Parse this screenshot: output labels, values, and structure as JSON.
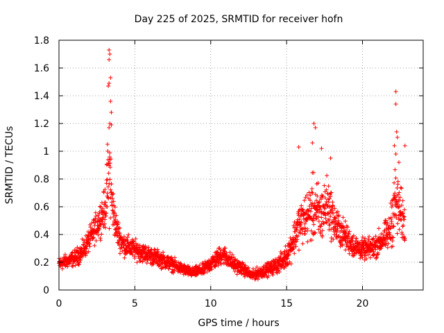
{
  "chart_data": {
    "type": "scatter",
    "title": "Day 225 of 2025, SRMTID for receiver hofn",
    "xlabel": "GPS time / hours",
    "ylabel": "SRMTID / TECUs",
    "xlim": [
      0,
      24
    ],
    "ylim": [
      0,
      1.8
    ],
    "x_ticks": [
      0,
      5,
      10,
      15,
      20
    ],
    "x_tick_labels": [
      "0",
      "5",
      "10",
      "15",
      "20"
    ],
    "y_ticks": [
      0,
      0.2,
      0.4,
      0.6,
      0.8,
      1,
      1.2,
      1.4,
      1.6,
      1.8
    ],
    "y_tick_labels": [
      "0",
      "0.2",
      "0.4",
      "0.6",
      "0.8",
      "1",
      "1.2",
      "1.4",
      "1.6",
      "1.8"
    ],
    "grid": true,
    "marker": "+",
    "marker_color": "#ff0000",
    "series": [
      {
        "name": "SRMTID",
        "profile": {
          "x": [
            0.0,
            0.5,
            1.0,
            1.5,
            2.0,
            2.5,
            2.8,
            3.0,
            3.2,
            3.35,
            3.5,
            3.8,
            4.2,
            5.0,
            6.0,
            7.0,
            8.0,
            8.8,
            9.5,
            10.2,
            10.8,
            11.5,
            12.2,
            12.7,
            13.2,
            14.0,
            14.8,
            15.3,
            15.8,
            16.3,
            16.8,
            17.2,
            17.7,
            18.2,
            18.8,
            19.5,
            20.2,
            20.8,
            21.3,
            21.8,
            22.1,
            22.4,
            22.8
          ],
          "center": [
            0.18,
            0.2,
            0.22,
            0.26,
            0.35,
            0.45,
            0.52,
            0.55,
            0.7,
            0.8,
            0.6,
            0.42,
            0.32,
            0.28,
            0.24,
            0.2,
            0.15,
            0.12,
            0.14,
            0.2,
            0.25,
            0.18,
            0.14,
            0.1,
            0.12,
            0.15,
            0.2,
            0.3,
            0.45,
            0.5,
            0.55,
            0.5,
            0.6,
            0.45,
            0.38,
            0.3,
            0.28,
            0.3,
            0.35,
            0.4,
            0.6,
            0.55,
            0.45
          ],
          "spread": [
            0.07,
            0.07,
            0.08,
            0.1,
            0.12,
            0.15,
            0.18,
            0.2,
            0.35,
            0.55,
            0.25,
            0.15,
            0.12,
            0.1,
            0.09,
            0.08,
            0.06,
            0.05,
            0.06,
            0.09,
            0.1,
            0.08,
            0.06,
            0.05,
            0.06,
            0.07,
            0.1,
            0.15,
            0.22,
            0.25,
            0.35,
            0.3,
            0.28,
            0.2,
            0.15,
            0.12,
            0.1,
            0.12,
            0.14,
            0.18,
            0.4,
            0.3,
            0.2
          ]
        },
        "peaks": [
          {
            "x": 3.3,
            "y": 1.73
          },
          {
            "x": 3.35,
            "y": 1.7
          },
          {
            "x": 3.3,
            "y": 1.66
          },
          {
            "x": 3.4,
            "y": 1.53
          },
          {
            "x": 3.3,
            "y": 1.49
          },
          {
            "x": 3.25,
            "y": 1.47
          },
          {
            "x": 3.4,
            "y": 1.36
          },
          {
            "x": 3.45,
            "y": 1.28
          },
          {
            "x": 3.35,
            "y": 1.2
          },
          {
            "x": 3.3,
            "y": 1.17
          },
          {
            "x": 3.45,
            "y": 1.19
          },
          {
            "x": 3.2,
            "y": 1.05
          },
          {
            "x": 16.8,
            "y": 1.2
          },
          {
            "x": 16.9,
            "y": 1.17
          },
          {
            "x": 16.7,
            "y": 1.06
          },
          {
            "x": 17.3,
            "y": 1.02
          },
          {
            "x": 15.8,
            "y": 1.03
          },
          {
            "x": 17.9,
            "y": 0.95
          },
          {
            "x": 22.2,
            "y": 1.43
          },
          {
            "x": 22.2,
            "y": 1.34
          },
          {
            "x": 22.25,
            "y": 1.14
          },
          {
            "x": 22.3,
            "y": 1.1
          },
          {
            "x": 22.1,
            "y": 1.04
          },
          {
            "x": 22.8,
            "y": 1.04
          },
          {
            "x": 22.2,
            "y": 0.98
          },
          {
            "x": 22.4,
            "y": 0.92
          }
        ]
      }
    ]
  }
}
